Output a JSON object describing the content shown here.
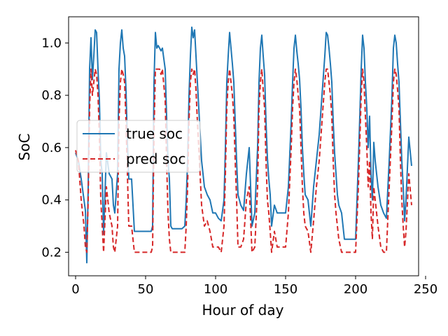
{
  "chart_data": {
    "type": "line",
    "xlabel": "Hour of day",
    "ylabel": "SoC",
    "xlim": [
      -5,
      245
    ],
    "ylim": [
      0.11,
      1.1
    ],
    "xticks": [
      0,
      50,
      100,
      150,
      200,
      250
    ],
    "yticks": [
      0.2,
      0.4,
      0.6,
      0.8,
      1.0
    ],
    "xtick_labels": [
      "0",
      "50",
      "100",
      "150",
      "200",
      "250"
    ],
    "ytick_labels": [
      "0.2",
      "0.4",
      "0.6",
      "0.8",
      "1.0"
    ],
    "grid": false,
    "legend": "center-left",
    "series": [
      {
        "name": "true soc",
        "color": "#1f77b4",
        "style": "solid",
        "x": [
          0,
          2,
          4,
          6,
          7,
          8,
          9,
          10,
          11,
          12,
          13,
          14,
          15,
          16,
          17,
          18,
          19,
          20,
          22,
          24,
          26,
          27,
          28,
          30,
          31,
          32,
          33,
          34,
          35,
          36,
          37,
          38,
          40,
          42,
          44,
          46,
          48,
          50,
          52,
          54,
          55,
          56,
          57,
          58,
          59,
          60,
          61,
          62,
          64,
          65,
          66,
          67,
          68,
          69,
          70,
          72,
          74,
          76,
          78,
          79,
          80,
          81,
          82,
          83,
          84,
          85,
          86,
          87,
          88,
          90,
          92,
          94,
          96,
          98,
          100,
          102,
          104,
          106,
          107,
          108,
          109,
          110,
          111,
          112,
          113,
          114,
          115,
          116,
          118,
          120,
          122,
          124,
          126,
          128,
          130,
          131,
          132,
          133,
          134,
          135,
          136,
          137,
          138,
          139,
          140,
          142,
          144,
          146,
          148,
          150,
          152,
          154,
          155,
          156,
          157,
          158,
          159,
          160,
          161,
          162,
          163,
          164,
          166,
          168,
          170,
          172,
          174,
          176,
          178,
          179,
          180,
          181,
          182,
          183,
          184,
          185,
          186,
          187,
          188,
          190,
          192,
          194,
          196,
          198,
          200,
          202,
          203,
          204,
          205,
          206,
          207,
          208,
          209,
          210,
          211,
          212,
          213,
          214,
          216,
          218,
          220,
          222,
          224,
          226,
          227,
          228,
          229,
          230,
          231,
          232,
          233,
          234,
          235,
          236,
          238,
          240
        ],
        "y": [
          0.58,
          0.55,
          0.48,
          0.4,
          0.36,
          0.16,
          0.45,
          0.9,
          1.02,
          0.86,
          0.95,
          1.05,
          1.04,
          0.9,
          0.78,
          0.55,
          0.5,
          0.27,
          0.58,
          0.5,
          0.48,
          0.38,
          0.35,
          0.5,
          0.9,
          1.0,
          1.05,
          0.98,
          0.95,
          0.82,
          0.62,
          0.48,
          0.48,
          0.28,
          0.28,
          0.28,
          0.28,
          0.28,
          0.28,
          0.28,
          0.3,
          0.85,
          1.04,
          0.98,
          0.99,
          0.98,
          0.97,
          0.98,
          0.9,
          0.72,
          0.55,
          0.48,
          0.3,
          0.29,
          0.29,
          0.29,
          0.29,
          0.29,
          0.3,
          0.4,
          0.55,
          0.8,
          0.95,
          1.06,
          1.02,
          1.05,
          0.95,
          0.85,
          0.75,
          0.55,
          0.45,
          0.42,
          0.4,
          0.35,
          0.35,
          0.33,
          0.32,
          0.4,
          0.6,
          0.85,
          0.95,
          1.04,
          0.98,
          0.92,
          0.85,
          0.7,
          0.55,
          0.42,
          0.38,
          0.36,
          0.5,
          0.6,
          0.3,
          0.35,
          0.6,
          0.85,
          0.98,
          1.03,
          0.95,
          0.88,
          0.7,
          0.56,
          0.48,
          0.42,
          0.3,
          0.38,
          0.35,
          0.35,
          0.35,
          0.35,
          0.45,
          0.7,
          0.85,
          0.98,
          1.03,
          0.97,
          0.92,
          0.86,
          0.75,
          0.6,
          0.5,
          0.42,
          0.4,
          0.3,
          0.45,
          0.55,
          0.65,
          0.8,
          0.95,
          1.04,
          1.03,
          0.98,
          0.92,
          0.85,
          0.7,
          0.58,
          0.5,
          0.42,
          0.38,
          0.35,
          0.25,
          0.25,
          0.25,
          0.25,
          0.25,
          0.55,
          0.72,
          0.9,
          1.03,
          0.98,
          0.85,
          0.75,
          0.6,
          0.72,
          0.5,
          0.4,
          0.62,
          0.55,
          0.45,
          0.38,
          0.35,
          0.33,
          0.55,
          0.8,
          0.98,
          1.03,
          1.0,
          0.92,
          0.85,
          0.7,
          0.55,
          0.45,
          0.32,
          0.4,
          0.64,
          0.53
        ]
      },
      {
        "name": "pred soc",
        "color": "#d62728",
        "style": "dashed",
        "x": [
          0,
          2,
          4,
          6,
          7,
          8,
          9,
          10,
          11,
          12,
          13,
          14,
          15,
          16,
          17,
          18,
          19,
          20,
          22,
          24,
          26,
          27,
          28,
          30,
          31,
          32,
          33,
          34,
          35,
          36,
          37,
          38,
          40,
          42,
          44,
          46,
          48,
          50,
          52,
          54,
          55,
          56,
          57,
          58,
          59,
          60,
          61,
          62,
          64,
          65,
          66,
          67,
          68,
          69,
          70,
          72,
          74,
          76,
          78,
          79,
          80,
          81,
          82,
          83,
          84,
          85,
          86,
          87,
          88,
          90,
          92,
          94,
          96,
          98,
          100,
          102,
          104,
          106,
          107,
          108,
          109,
          110,
          111,
          112,
          113,
          114,
          115,
          116,
          118,
          120,
          122,
          124,
          126,
          128,
          130,
          131,
          132,
          133,
          134,
          135,
          136,
          137,
          138,
          139,
          140,
          142,
          144,
          146,
          148,
          150,
          152,
          154,
          155,
          156,
          157,
          158,
          159,
          160,
          161,
          162,
          163,
          164,
          166,
          168,
          170,
          172,
          174,
          176,
          178,
          179,
          180,
          181,
          182,
          183,
          184,
          185,
          186,
          187,
          188,
          190,
          192,
          194,
          196,
          198,
          200,
          202,
          203,
          204,
          205,
          206,
          207,
          208,
          209,
          210,
          211,
          212,
          213,
          214,
          216,
          218,
          220,
          222,
          224,
          226,
          227,
          228,
          229,
          230,
          231,
          232,
          233,
          234,
          235,
          236,
          238,
          240
        ],
        "y": [
          0.59,
          0.55,
          0.4,
          0.3,
          0.22,
          0.2,
          0.4,
          0.75,
          0.9,
          0.8,
          0.85,
          0.9,
          0.88,
          0.8,
          0.65,
          0.4,
          0.3,
          0.2,
          0.45,
          0.35,
          0.3,
          0.22,
          0.2,
          0.3,
          0.7,
          0.85,
          0.9,
          0.88,
          0.85,
          0.7,
          0.5,
          0.3,
          0.3,
          0.2,
          0.2,
          0.2,
          0.2,
          0.2,
          0.2,
          0.2,
          0.22,
          0.65,
          0.9,
          0.9,
          0.9,
          0.9,
          0.88,
          0.9,
          0.78,
          0.55,
          0.35,
          0.25,
          0.2,
          0.2,
          0.2,
          0.2,
          0.2,
          0.2,
          0.2,
          0.3,
          0.45,
          0.7,
          0.85,
          0.9,
          0.88,
          0.9,
          0.82,
          0.7,
          0.6,
          0.38,
          0.3,
          0.32,
          0.28,
          0.22,
          0.22,
          0.22,
          0.2,
          0.3,
          0.5,
          0.75,
          0.85,
          0.9,
          0.85,
          0.8,
          0.72,
          0.55,
          0.4,
          0.22,
          0.22,
          0.25,
          0.4,
          0.45,
          0.2,
          0.22,
          0.45,
          0.75,
          0.85,
          0.9,
          0.82,
          0.75,
          0.55,
          0.4,
          0.35,
          0.28,
          0.2,
          0.28,
          0.22,
          0.22,
          0.22,
          0.22,
          0.35,
          0.6,
          0.75,
          0.85,
          0.9,
          0.86,
          0.8,
          0.75,
          0.6,
          0.45,
          0.35,
          0.3,
          0.28,
          0.2,
          0.32,
          0.45,
          0.55,
          0.7,
          0.85,
          0.9,
          0.9,
          0.85,
          0.8,
          0.72,
          0.55,
          0.42,
          0.35,
          0.3,
          0.25,
          0.2,
          0.2,
          0.2,
          0.2,
          0.2,
          0.2,
          0.45,
          0.62,
          0.8,
          0.9,
          0.85,
          0.72,
          0.6,
          0.45,
          0.55,
          0.35,
          0.25,
          0.45,
          0.4,
          0.3,
          0.22,
          0.2,
          0.2,
          0.45,
          0.7,
          0.85,
          0.9,
          0.88,
          0.82,
          0.75,
          0.55,
          0.4,
          0.3,
          0.22,
          0.28,
          0.5,
          0.38
        ]
      }
    ]
  }
}
